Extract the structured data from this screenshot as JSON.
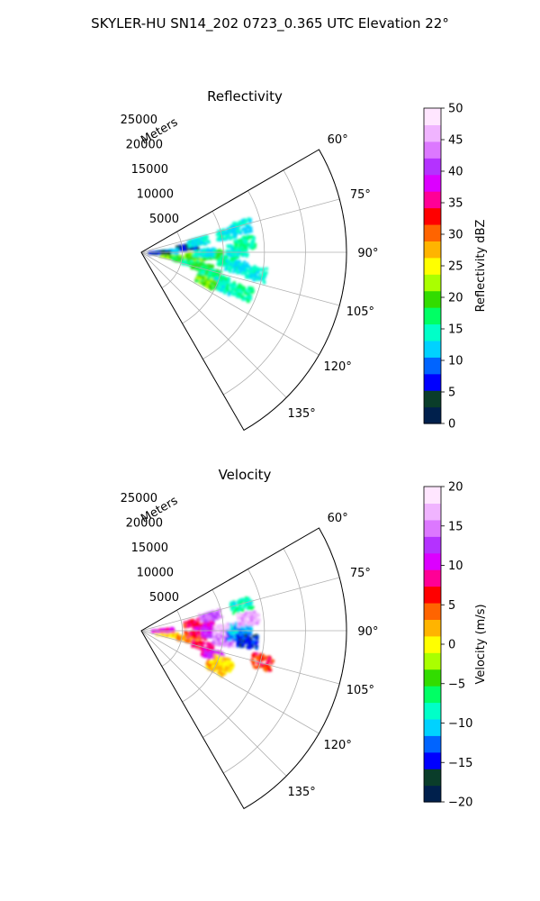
{
  "title": "SKYLER-HU  SN14_202  0723_0.365 UTC Elevation 22°",
  "chart_data": [
    {
      "type": "heatmap",
      "title": "Reflectivity",
      "projection": "polar-sector",
      "range_label": "Meters",
      "range_ticks": [
        5000,
        10000,
        15000,
        20000,
        25000
      ],
      "range_tick_labels": [
        "5000",
        "10000",
        "15000",
        "20000",
        "25000"
      ],
      "rmax": 25000,
      "azimuth_limits": [
        60,
        150
      ],
      "azimuth_ticks": [
        60,
        75,
        90,
        105,
        120,
        135
      ],
      "azimuth_tick_labels": [
        "60°",
        "75°",
        "90°",
        "105°",
        "120°",
        "135°"
      ],
      "grid": true,
      "colorbar": {
        "label": "Reflectivity dBZ",
        "min": 0,
        "max": 50,
        "ticks": [
          0,
          5,
          10,
          15,
          20,
          25,
          30,
          35,
          40,
          45,
          50
        ],
        "tick_labels": [
          "0",
          "5",
          "10",
          "15",
          "20",
          "25",
          "30",
          "35",
          "40",
          "45",
          "50"
        ],
        "colormap": "pyart_HomeyerRainbow",
        "colors": [
          "#00204c",
          "#0a3d2a",
          "#0000ff",
          "#0064ff",
          "#00d2ff",
          "#00ffc8",
          "#00ff64",
          "#32dc00",
          "#aaff00",
          "#ffff00",
          "#ffb400",
          "#ff6400",
          "#ff0000",
          "#ff0096",
          "#dc00ff",
          "#b432ff",
          "#dc78ff",
          "#f0b4ff",
          "#ffe6ff"
        ]
      },
      "echo_cells": [
        {
          "az": 96,
          "r": 3500,
          "value": 21
        },
        {
          "az": 99,
          "r": 5000,
          "value": 19
        },
        {
          "az": 101,
          "r": 6200,
          "value": 17
        },
        {
          "az": 103,
          "r": 7500,
          "value": 19
        },
        {
          "az": 106,
          "r": 8500,
          "value": 17
        },
        {
          "az": 109,
          "r": 9800,
          "value": 16
        },
        {
          "az": 112,
          "r": 10500,
          "value": 14
        },
        {
          "az": 93,
          "r": 6500,
          "value": 21
        },
        {
          "az": 91,
          "r": 8500,
          "value": 18
        },
        {
          "az": 89,
          "r": 7500,
          "value": 13
        },
        {
          "az": 95,
          "r": 10500,
          "value": 16
        },
        {
          "az": 98,
          "r": 11500,
          "value": 13
        },
        {
          "az": 88,
          "r": 11500,
          "value": 14
        },
        {
          "az": 82,
          "r": 5500,
          "value": 5
        },
        {
          "az": 78,
          "r": 7000,
          "value": 14
        },
        {
          "az": 86,
          "r": 3000,
          "value": 12
        },
        {
          "az": 87,
          "r": 2000,
          "value": 4
        },
        {
          "az": 77,
          "r": 10500,
          "value": 14
        },
        {
          "az": 75,
          "r": 12500,
          "value": 13
        },
        {
          "az": 84,
          "r": 12500,
          "value": 16
        },
        {
          "az": 100,
          "r": 14000,
          "value": 14
        },
        {
          "az": 111,
          "r": 13000,
          "value": 16
        },
        {
          "az": 114,
          "r": 8500,
          "value": 20
        }
      ]
    },
    {
      "type": "heatmap",
      "title": "Velocity",
      "projection": "polar-sector",
      "range_label": "Meters",
      "range_ticks": [
        5000,
        10000,
        15000,
        20000,
        25000
      ],
      "range_tick_labels": [
        "5000",
        "10000",
        "15000",
        "20000",
        "25000"
      ],
      "rmax": 25000,
      "azimuth_limits": [
        60,
        150
      ],
      "azimuth_ticks": [
        60,
        75,
        90,
        105,
        120,
        135
      ],
      "azimuth_tick_labels": [
        "60°",
        "75°",
        "90°",
        "105°",
        "120°",
        "135°"
      ],
      "grid": true,
      "colorbar": {
        "label": "Velocity (m/s)",
        "min": -20,
        "max": 20,
        "ticks": [
          -20,
          -15,
          -10,
          -5,
          0,
          5,
          10,
          15,
          20
        ],
        "tick_labels": [
          "−20",
          "−15",
          "−10",
          "−5",
          "0",
          "5",
          "10",
          "15",
          "20"
        ],
        "colormap": "pyart_HomeyerRainbow",
        "colors": [
          "#00204c",
          "#0a3d2a",
          "#0000ff",
          "#0064ff",
          "#00d2ff",
          "#00ffc8",
          "#00ff64",
          "#32dc00",
          "#aaff00",
          "#ffff00",
          "#ffb400",
          "#ff6400",
          "#ff0000",
          "#ff0096",
          "#dc00ff",
          "#b432ff",
          "#dc78ff",
          "#f0b4ff",
          "#ffe6ff"
        ]
      },
      "echo_cells": [
        {
          "az": 96,
          "r": 3000,
          "value": 1
        },
        {
          "az": 99,
          "r": 5500,
          "value": 3
        },
        {
          "az": 103,
          "r": 7500,
          "value": 7
        },
        {
          "az": 108,
          "r": 9000,
          "value": 11
        },
        {
          "az": 111,
          "r": 10500,
          "value": 1
        },
        {
          "az": 93,
          "r": 6500,
          "value": 6
        },
        {
          "az": 91,
          "r": 8500,
          "value": 12
        },
        {
          "az": 96,
          "r": 10000,
          "value": 15
        },
        {
          "az": 88,
          "r": 10000,
          "value": 17
        },
        {
          "az": 84,
          "r": 7500,
          "value": 10
        },
        {
          "az": 80,
          "r": 6500,
          "value": 7
        },
        {
          "az": 77,
          "r": 8500,
          "value": 14
        },
        {
          "az": 86,
          "r": 2500,
          "value": 9
        },
        {
          "az": 92,
          "r": 11500,
          "value": -12
        },
        {
          "az": 88,
          "r": 12000,
          "value": -11
        },
        {
          "az": 95,
          "r": 12800,
          "value": -15
        },
        {
          "az": 75,
          "r": 12500,
          "value": -8
        },
        {
          "az": 83,
          "r": 13000,
          "value": 16
        },
        {
          "az": 104,
          "r": 15000,
          "value": 6
        },
        {
          "az": 116,
          "r": 10000,
          "value": 2
        }
      ]
    }
  ]
}
